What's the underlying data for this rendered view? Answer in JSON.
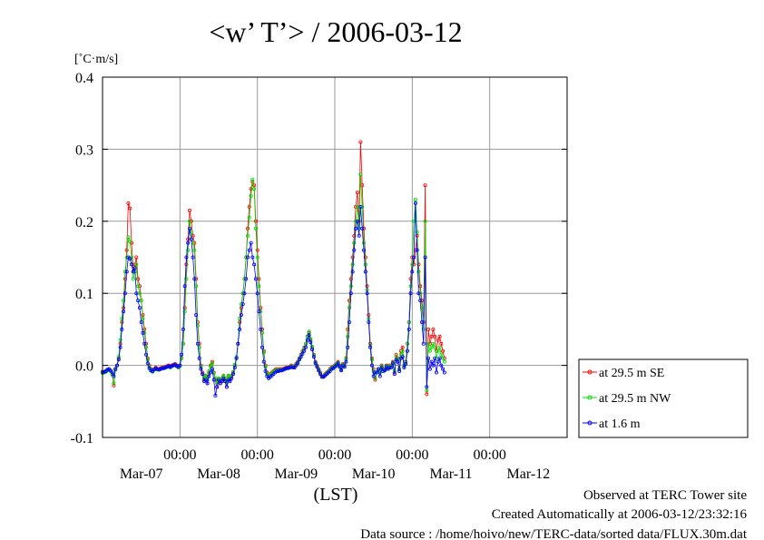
{
  "chart_data": {
    "type": "line",
    "title": "<w’ T’> / 2006-03-12",
    "ylabel": "[˚C·m/s]",
    "xlabel": "(LST)",
    "ylim": [
      -0.1,
      0.4
    ],
    "yticks": [
      -0.1,
      0.0,
      0.1,
      0.2,
      0.3,
      0.4
    ],
    "ytick_labels": [
      "-0.1",
      "0.0",
      "0.1",
      "0.2",
      "0.3",
      "0.4"
    ],
    "xlim_hours": [
      0,
      144
    ],
    "x_start": "2006-03-06 00:00 LST",
    "x_step_hours": 0.5,
    "xticks": [
      {
        "hour": 24,
        "label": "00:00"
      },
      {
        "hour": 48,
        "label": "00:00"
      },
      {
        "hour": 72,
        "label": "00:00"
      },
      {
        "hour": 96,
        "label": "00:00"
      },
      {
        "hour": 120,
        "label": "00:00"
      }
    ],
    "day_labels": [
      {
        "hour": 12,
        "label": "Mar-07"
      },
      {
        "hour": 36,
        "label": "Mar-08"
      },
      {
        "hour": 60,
        "label": "Mar-09"
      },
      {
        "hour": 84,
        "label": "Mar-10"
      },
      {
        "hour": 108,
        "label": "Mar-11"
      },
      {
        "hour": 132,
        "label": "Mar-12"
      }
    ],
    "grid": true,
    "legend_position": "right",
    "series": [
      {
        "name": "at 29.5 m SE",
        "color": "#ff0000",
        "values": [
          -0.01,
          -0.01,
          -0.008,
          -0.006,
          -0.005,
          -0.007,
          -0.012,
          -0.028,
          -0.005,
          0.0,
          0.01,
          0.03,
          0.06,
          0.08,
          0.12,
          0.16,
          0.225,
          0.218,
          0.17,
          0.13,
          0.14,
          0.15,
          0.12,
          0.11,
          0.09,
          0.07,
          0.05,
          0.03,
          0.01,
          0.0,
          -0.005,
          -0.008,
          -0.005,
          -0.003,
          -0.005,
          -0.005,
          -0.004,
          -0.003,
          -0.003,
          -0.002,
          -0.001,
          0.0,
          -0.002,
          0.0,
          0.001,
          0.002,
          0.0,
          -0.002,
          0.0,
          0.01,
          0.03,
          0.08,
          0.14,
          0.175,
          0.215,
          0.2,
          0.18,
          0.17,
          0.12,
          0.06,
          0.03,
          0.0,
          -0.01,
          -0.02,
          -0.015,
          -0.025,
          -0.01,
          0.0,
          0.005,
          -0.01,
          -0.02,
          -0.03,
          -0.02,
          -0.025,
          -0.02,
          -0.015,
          -0.02,
          -0.03,
          -0.015,
          -0.02,
          -0.015,
          -0.01,
          0.0,
          0.01,
          0.03,
          0.06,
          0.08,
          0.1,
          0.12,
          0.15,
          0.19,
          0.22,
          0.245,
          0.255,
          0.25,
          0.2,
          0.16,
          0.12,
          0.08,
          0.05,
          0.02,
          0.0,
          -0.01,
          -0.015,
          -0.012,
          -0.01,
          -0.008,
          -0.006,
          -0.005,
          -0.006,
          -0.005,
          -0.005,
          -0.005,
          -0.004,
          -0.003,
          -0.003,
          -0.002,
          0.0,
          -0.001,
          -0.002,
          0.002,
          0.005,
          0.01,
          0.015,
          0.02,
          0.025,
          0.03,
          0.04,
          0.045,
          0.035,
          0.025,
          0.015,
          0.005,
          0.0,
          -0.005,
          -0.01,
          -0.015,
          -0.015,
          -0.012,
          -0.01,
          -0.008,
          -0.005,
          -0.003,
          -0.002,
          0.0,
          0.002,
          0.005,
          0.0,
          -0.005,
          0.002,
          0.0,
          0.01,
          0.05,
          0.09,
          0.12,
          0.15,
          0.18,
          0.22,
          0.24,
          0.2,
          0.31,
          0.25,
          0.19,
          0.15,
          0.11,
          0.07,
          0.03,
          0.01,
          -0.005,
          -0.02,
          -0.01,
          -0.005,
          -0.01,
          0.0,
          -0.005,
          -0.005,
          0.0,
          -0.003,
          0.0,
          0.0,
          0.005,
          -0.01,
          0.015,
          0.01,
          -0.005,
          0.02,
          0.025,
          0.0,
          0.005,
          0.03,
          0.06,
          0.12,
          0.15,
          0.14,
          0.16,
          0.18,
          0.14,
          0.11,
          0.09,
          0.06,
          0.25,
          -0.04,
          0.05,
          0.03,
          0.04,
          0.05,
          0.04,
          0.02,
          0.035,
          0.04,
          0.03,
          0.02,
          0.01
        ]
      },
      {
        "name": "at 29.5 m NW",
        "color": "#00dd00",
        "values": [
          -0.011,
          -0.01,
          -0.009,
          -0.007,
          -0.006,
          -0.008,
          -0.013,
          -0.025,
          -0.006,
          0.0,
          0.012,
          0.035,
          0.065,
          0.09,
          0.13,
          0.15,
          0.178,
          0.172,
          0.15,
          0.12,
          0.13,
          0.14,
          0.11,
          0.1,
          0.09,
          0.065,
          0.045,
          0.025,
          0.008,
          -0.002,
          -0.006,
          -0.009,
          -0.006,
          -0.004,
          -0.006,
          -0.006,
          -0.005,
          -0.004,
          -0.004,
          -0.003,
          -0.002,
          -0.001,
          -0.003,
          -0.001,
          0.0,
          0.001,
          -0.001,
          -0.003,
          -0.001,
          0.01,
          0.03,
          0.075,
          0.12,
          0.16,
          0.2,
          0.185,
          0.17,
          0.16,
          0.11,
          0.055,
          0.025,
          -0.002,
          -0.012,
          -0.018,
          -0.014,
          -0.02,
          -0.008,
          -0.001,
          0.003,
          -0.011,
          -0.018,
          -0.025,
          -0.018,
          -0.022,
          -0.018,
          -0.014,
          -0.018,
          -0.025,
          -0.014,
          -0.018,
          -0.014,
          -0.009,
          0.001,
          0.012,
          0.03,
          0.065,
          0.085,
          0.1,
          0.12,
          0.15,
          0.18,
          0.205,
          0.235,
          0.258,
          0.245,
          0.19,
          0.15,
          0.11,
          0.075,
          0.045,
          0.018,
          -0.002,
          -0.012,
          -0.016,
          -0.013,
          -0.011,
          -0.009,
          -0.007,
          -0.006,
          -0.007,
          -0.006,
          -0.006,
          -0.006,
          -0.005,
          -0.004,
          -0.004,
          -0.003,
          -0.001,
          -0.002,
          -0.003,
          0.001,
          0.004,
          0.009,
          0.014,
          0.019,
          0.024,
          0.03,
          0.04,
          0.047,
          0.037,
          0.026,
          0.014,
          0.004,
          -0.001,
          -0.006,
          -0.011,
          -0.016,
          -0.016,
          -0.013,
          -0.011,
          -0.009,
          -0.006,
          -0.004,
          -0.003,
          -0.001,
          0.001,
          0.004,
          -0.001,
          -0.006,
          0.001,
          -0.001,
          0.009,
          0.04,
          0.08,
          0.11,
          0.14,
          0.17,
          0.2,
          0.22,
          0.19,
          0.265,
          0.22,
          0.17,
          0.14,
          0.105,
          0.065,
          0.028,
          0.008,
          -0.008,
          -0.018,
          -0.01,
          -0.006,
          -0.01,
          -0.001,
          -0.006,
          -0.006,
          -0.001,
          -0.004,
          -0.001,
          -0.001,
          0.004,
          -0.008,
          0.012,
          0.008,
          -0.006,
          0.015,
          0.02,
          -0.001,
          0.004,
          0.03,
          0.06,
          0.11,
          0.14,
          0.2,
          0.23,
          0.185,
          0.13,
          0.1,
          0.08,
          0.05,
          0.2,
          -0.035,
          0.03,
          0.02,
          0.025,
          0.03,
          0.025,
          0.01,
          0.02,
          0.025,
          0.015,
          0.01,
          0.005
        ]
      },
      {
        "name": "at 1.6 m",
        "color": "#0000ff",
        "values": [
          -0.009,
          -0.009,
          -0.008,
          -0.006,
          -0.005,
          -0.007,
          -0.01,
          -0.015,
          -0.005,
          0.0,
          0.008,
          0.025,
          0.05,
          0.075,
          0.1,
          0.13,
          0.15,
          0.148,
          0.14,
          0.13,
          0.135,
          0.1,
          0.09,
          0.08,
          0.06,
          0.045,
          0.03,
          0.015,
          0.003,
          -0.004,
          -0.007,
          -0.008,
          -0.006,
          -0.004,
          -0.005,
          -0.006,
          -0.005,
          -0.004,
          -0.004,
          -0.003,
          -0.002,
          -0.001,
          -0.002,
          -0.001,
          0.0,
          0.001,
          -0.001,
          -0.002,
          0.0,
          0.015,
          0.05,
          0.11,
          0.15,
          0.17,
          0.19,
          0.175,
          0.15,
          0.12,
          0.07,
          0.03,
          0.01,
          -0.005,
          -0.012,
          -0.022,
          -0.02,
          -0.025,
          -0.015,
          -0.01,
          -0.005,
          -0.02,
          -0.042,
          -0.03,
          -0.02,
          -0.025,
          -0.022,
          -0.018,
          -0.022,
          -0.03,
          -0.02,
          -0.022,
          -0.018,
          -0.012,
          -0.003,
          0.01,
          0.03,
          0.05,
          0.07,
          0.085,
          0.1,
          0.12,
          0.15,
          0.16,
          0.17,
          0.15,
          0.14,
          0.12,
          0.1,
          0.075,
          0.05,
          0.025,
          0.005,
          -0.008,
          -0.015,
          -0.018,
          -0.016,
          -0.014,
          -0.012,
          -0.01,
          -0.008,
          -0.008,
          -0.007,
          -0.007,
          -0.006,
          -0.005,
          -0.004,
          -0.004,
          -0.003,
          -0.002,
          -0.003,
          -0.003,
          0.0,
          0.003,
          0.008,
          0.012,
          0.016,
          0.02,
          0.025,
          0.035,
          0.042,
          0.032,
          0.022,
          0.012,
          0.003,
          -0.002,
          -0.007,
          -0.012,
          -0.016,
          -0.016,
          -0.014,
          -0.012,
          -0.01,
          -0.008,
          -0.005,
          -0.004,
          -0.002,
          0.0,
          0.003,
          -0.002,
          -0.007,
          0.0,
          -0.002,
          0.005,
          0.025,
          0.06,
          0.1,
          0.13,
          0.16,
          0.19,
          0.2,
          0.18,
          0.22,
          0.19,
          0.16,
          0.13,
          0.1,
          0.06,
          0.025,
          0.0,
          -0.015,
          -0.01,
          -0.01,
          -0.005,
          -0.015,
          -0.003,
          -0.008,
          -0.007,
          -0.002,
          -0.005,
          -0.003,
          -0.003,
          0.003,
          -0.012,
          0.008,
          0.005,
          -0.008,
          0.01,
          0.012,
          -0.003,
          0.002,
          0.02,
          0.05,
          0.1,
          0.13,
          0.15,
          0.225,
          0.16,
          0.1,
          0.09,
          0.06,
          0.03,
          0.15,
          -0.03,
          0.01,
          -0.005,
          0.005,
          0.0,
          0.01,
          -0.01,
          0.005,
          0.01,
          0.0,
          -0.005,
          -0.01
        ]
      }
    ]
  },
  "footer": {
    "line1": "Observed at TERC Tower site",
    "line2": "Created Automatically at 2006-03-12/23:32:16",
    "line3": "Data source : /home/hoivo/new/TERC-data/sorted  data/FLUX.30m.dat"
  }
}
